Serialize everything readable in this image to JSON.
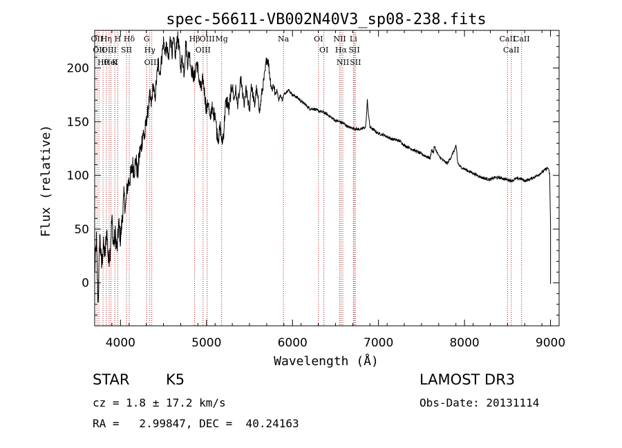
{
  "chart_data": {
    "type": "line",
    "title": "spec-56611-VB002N40V3_sp08-238.fits",
    "xlabel": "Wavelength (Å)",
    "ylabel": "Flux (relative)",
    "xlim": [
      3700,
      9100
    ],
    "ylim": [
      -40,
      235
    ],
    "xticks": [
      4000,
      5000,
      6000,
      7000,
      8000,
      9000
    ],
    "yticks": [
      0,
      50,
      100,
      150,
      200
    ],
    "series": [
      {
        "name": "flux",
        "x": [
          3700,
          3720,
          3740,
          3760,
          3780,
          3800,
          3820,
          3840,
          3860,
          3880,
          3900,
          3920,
          3940,
          3960,
          3980,
          4000,
          4020,
          4040,
          4060,
          4080,
          4100,
          4120,
          4140,
          4160,
          4180,
          4200,
          4220,
          4240,
          4260,
          4280,
          4300,
          4320,
          4340,
          4360,
          4380,
          4400,
          4420,
          4440,
          4460,
          4480,
          4500,
          4520,
          4540,
          4560,
          4580,
          4600,
          4620,
          4640,
          4660,
          4680,
          4700,
          4720,
          4740,
          4760,
          4780,
          4800,
          4820,
          4840,
          4860,
          4880,
          4900,
          4920,
          4940,
          4960,
          4980,
          5000,
          5020,
          5040,
          5060,
          5080,
          5100,
          5120,
          5140,
          5160,
          5180,
          5200,
          5220,
          5240,
          5260,
          5280,
          5300,
          5320,
          5340,
          5360,
          5380,
          5400,
          5420,
          5440,
          5460,
          5480,
          5500,
          5520,
          5540,
          5560,
          5580,
          5600,
          5620,
          5640,
          5660,
          5680,
          5700,
          5720,
          5740,
          5760,
          5780,
          5800,
          5820,
          5840,
          5860,
          5880,
          5900,
          5950,
          6000,
          6050,
          6100,
          6150,
          6200,
          6250,
          6300,
          6350,
          6400,
          6450,
          6500,
          6550,
          6600,
          6650,
          6700,
          6750,
          6800,
          6850,
          6860,
          6870,
          6880,
          6890,
          6900,
          6950,
          7000,
          7050,
          7100,
          7150,
          7200,
          7250,
          7300,
          7350,
          7400,
          7450,
          7500,
          7550,
          7600,
          7620,
          7640,
          7650,
          7700,
          7750,
          7800,
          7850,
          7900,
          7910,
          7920,
          7950,
          8000,
          8050,
          8100,
          8150,
          8200,
          8250,
          8300,
          8350,
          8400,
          8450,
          8500,
          8550,
          8600,
          8650,
          8700,
          8750,
          8800,
          8850,
          8900,
          8950,
          8970,
          8980,
          8990,
          9000,
          9000
        ],
        "values": [
          10,
          40,
          -20,
          45,
          15,
          35,
          25,
          50,
          20,
          30,
          60,
          35,
          45,
          30,
          55,
          40,
          60,
          80,
          70,
          90,
          95,
          100,
          110,
          105,
          115,
          100,
          120,
          125,
          140,
          135,
          150,
          160,
          175,
          165,
          185,
          170,
          190,
          205,
          195,
          210,
          225,
          215,
          220,
          205,
          230,
          215,
          225,
          210,
          230,
          220,
          200,
          210,
          195,
          225,
          205,
          215,
          200,
          195,
          190,
          205,
          200,
          185,
          180,
          190,
          175,
          160,
          170,
          150,
          165,
          155,
          160,
          140,
          135,
          145,
          130,
          140,
          165,
          170,
          160,
          175,
          185,
          170,
          180,
          165,
          175,
          190,
          175,
          165,
          180,
          170,
          160,
          185,
          175,
          165,
          180,
          170,
          160,
          175,
          185,
          195,
          210,
          205,
          190,
          180,
          185,
          175,
          180,
          170,
          175,
          170,
          175,
          180,
          175,
          173,
          169,
          166,
          162,
          162,
          160,
          159,
          157,
          154,
          151,
          150,
          148,
          145,
          144,
          143,
          143,
          145,
          155,
          170,
          160,
          152,
          145,
          142,
          139,
          138,
          136,
          134,
          133,
          132,
          128,
          126,
          124,
          122,
          120,
          118,
          116,
          124,
          121,
          127,
          118,
          114,
          111,
          118,
          127,
          122,
          112,
          108,
          106,
          104,
          102,
          100,
          98,
          97,
          96,
          98,
          98,
          97,
          96,
          95,
          97,
          97,
          95,
          96,
          98,
          100,
          103,
          106,
          107,
          104,
          102,
          55,
          -1
        ]
      }
    ],
    "lines": [
      {
        "wave": 3727,
        "label": "OII"
      },
      {
        "wave": 3750,
        "label": "OII"
      },
      {
        "wave": 3797,
        "label": "Hθ"
      },
      {
        "wave": 3835,
        "label": "Hη"
      },
      {
        "wave": 3868,
        "label": "OIII"
      },
      {
        "wave": 3889,
        "label": "HeI"
      },
      {
        "wave": 3934,
        "label": "K"
      },
      {
        "wave": 3969,
        "label": "H"
      },
      {
        "wave": 4070,
        "label": "SII"
      },
      {
        "wave": 4102,
        "label": "Hδ"
      },
      {
        "wave": 4305,
        "label": "G"
      },
      {
        "wave": 4341,
        "label": "Hγ"
      },
      {
        "wave": 4364,
        "label": "OIII"
      },
      {
        "wave": 4862,
        "label": "Hβ"
      },
      {
        "wave": 4960,
        "label": "OIII"
      },
      {
        "wave": 5008,
        "label": "OIII"
      },
      {
        "wave": 5176,
        "label": "Mg"
      },
      {
        "wave": 5895,
        "label": "Na"
      },
      {
        "wave": 6302,
        "label": "OI"
      },
      {
        "wave": 6365,
        "label": "OI"
      },
      {
        "wave": 6549,
        "label": "NII"
      },
      {
        "wave": 6564,
        "label": "Hα"
      },
      {
        "wave": 6585,
        "label": "NII"
      },
      {
        "wave": 6708,
        "label": "Li"
      },
      {
        "wave": 6718,
        "label": "SII"
      },
      {
        "wave": 6732,
        "label": "SII"
      },
      {
        "wave": 8500,
        "label": "CaII"
      },
      {
        "wave": 8544,
        "label": "CaII"
      },
      {
        "wave": 8664,
        "label": "CaII"
      }
    ],
    "line_color": "#aa1a1a"
  },
  "info": {
    "class": "STAR",
    "subclass": "K5",
    "survey": "LAMOST DR3",
    "cz": "cz = 1.8 ± 17.2 km/s",
    "obs_date": "Obs-Date: 20131114",
    "coords": "RA =   2.99847, DEC =  40.24163"
  }
}
